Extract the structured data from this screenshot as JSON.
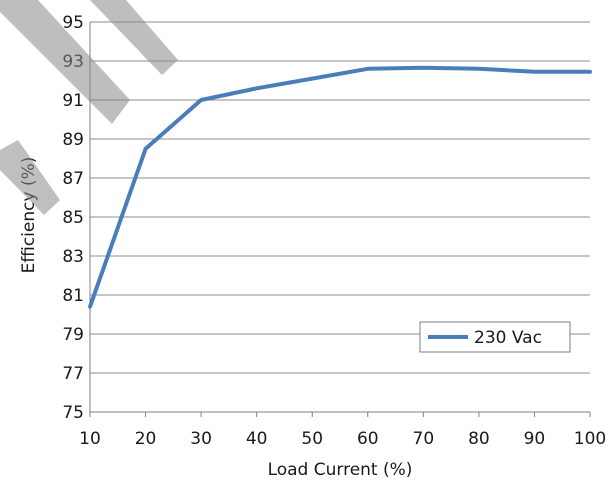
{
  "chart_data": {
    "type": "line",
    "xlabel": "Load Current  (%)",
    "ylabel": "Efficiency (%)",
    "x": [
      10,
      20,
      30,
      40,
      50,
      60,
      70,
      80,
      90,
      100
    ],
    "xticks": [
      "10",
      "20",
      "30",
      "40",
      "50",
      "60",
      "70",
      "80",
      "90",
      "100"
    ],
    "yticks": [
      "75",
      "77",
      "79",
      "81",
      "83",
      "85",
      "87",
      "89",
      "91",
      "93",
      "95"
    ],
    "xlim": [
      10,
      100
    ],
    "ylim": [
      75,
      95
    ],
    "grid": "horizontal",
    "legend_position": "lower-right",
    "series": [
      {
        "name": "230 Vac",
        "color": "#4a7ebb",
        "values": [
          80.4,
          88.5,
          91.0,
          91.6,
          92.1,
          92.6,
          92.65,
          92.6,
          92.45,
          92.45
        ]
      }
    ]
  }
}
